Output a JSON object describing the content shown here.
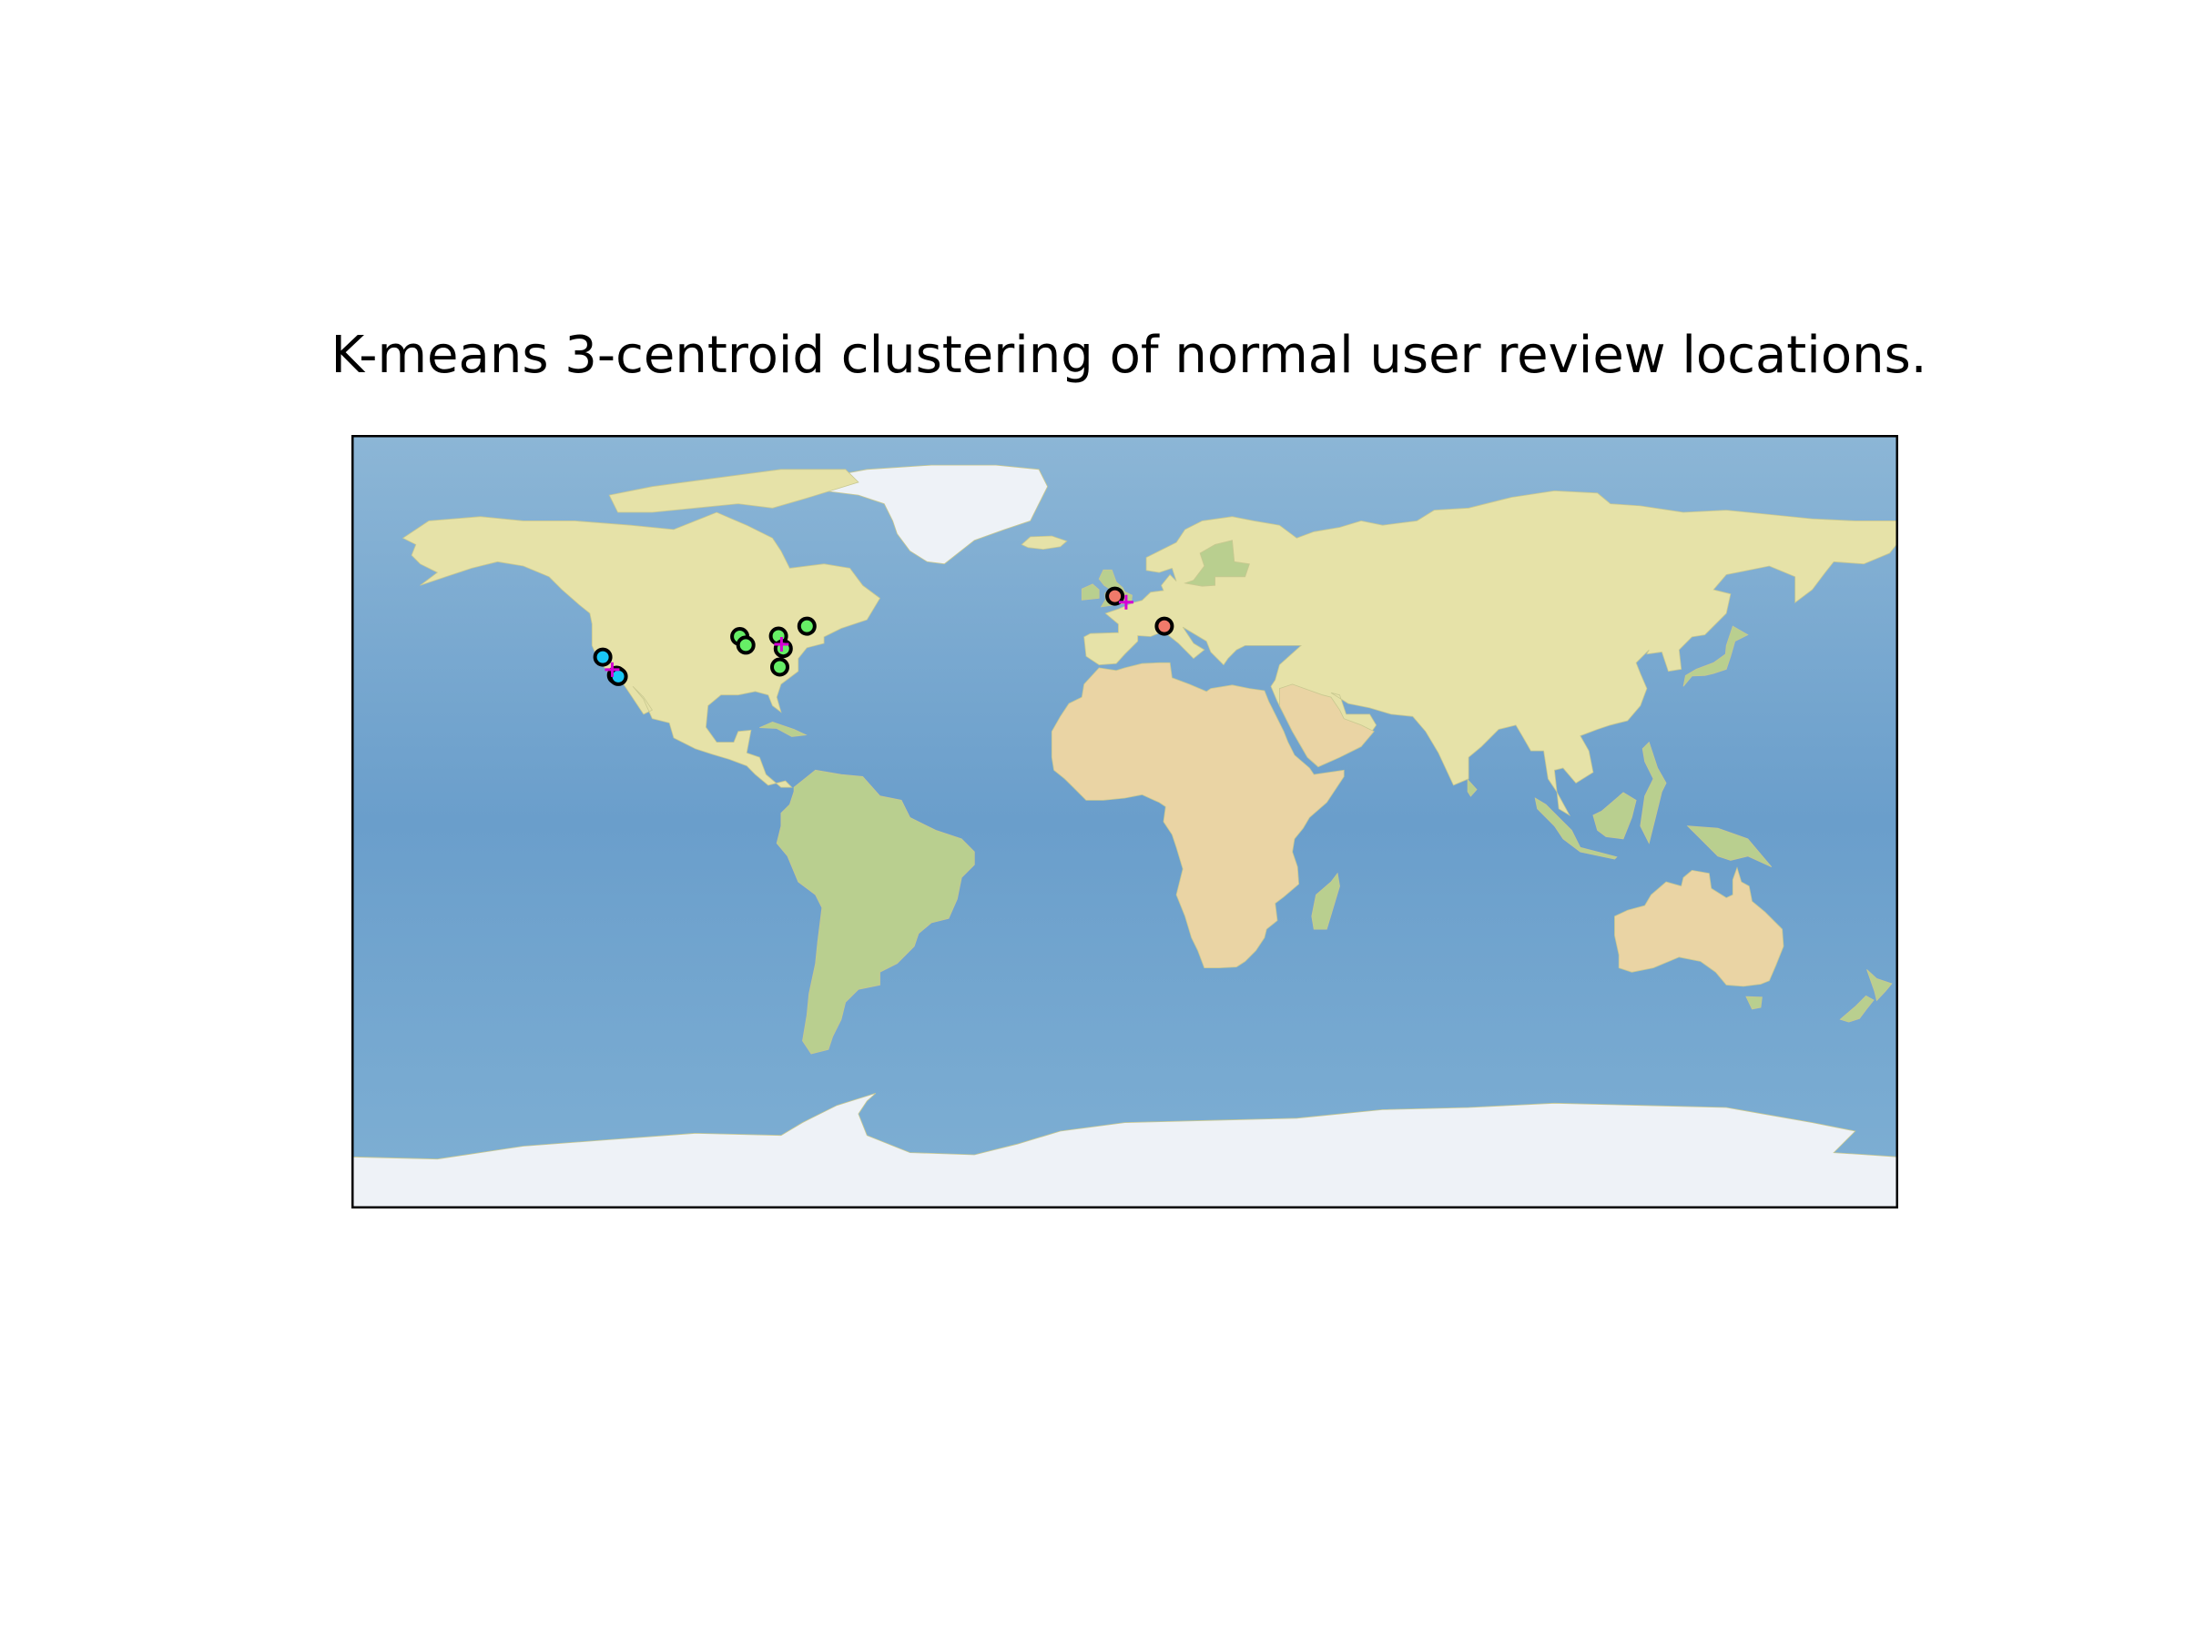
{
  "title": "K-means 3-centroid clustering of normal user review locations.",
  "colors": {
    "ocean": "#6b9fc9",
    "ocean_light": "#8db8d8",
    "land": "#e6e2a8",
    "land_green": "#b9cf8f",
    "desert": "#ead4a4",
    "ice": "#eef2f7",
    "frame": "#000000",
    "cluster_west": "#19c6f5",
    "cluster_east": "#66ee66",
    "cluster_europe": "#f07a6a",
    "centroid": "#d400d4"
  },
  "chart_data": {
    "type": "scatter",
    "title": "K-means 3-centroid clustering of normal user review locations.",
    "projection": "plate-carree",
    "xlim": [
      -180,
      180
    ],
    "ylim": [
      -90,
      90
    ],
    "xlabel": "",
    "ylabel": "",
    "grid": false,
    "series": [
      {
        "color": "#19c6f5",
        "points": [
          {
            "lon": -121.5,
            "lat": 38.3
          },
          {
            "lon": -118.3,
            "lat": 34.1
          },
          {
            "lon": -117.9,
            "lat": 33.8
          }
        ]
      },
      {
        "color": "#66ee66",
        "points": [
          {
            "lon": -89.6,
            "lat": 43.1
          },
          {
            "lon": -88.2,
            "lat": 41.1
          },
          {
            "lon": -80.6,
            "lat": 43.2
          },
          {
            "lon": -79.5,
            "lat": 40.3
          },
          {
            "lon": -74.0,
            "lat": 45.5
          },
          {
            "lon": -80.3,
            "lat": 36.0
          }
        ]
      },
      {
        "color": "#f07a6a",
        "points": [
          {
            "lon": -2.3,
            "lat": 52.5
          },
          {
            "lon": 9.2,
            "lat": 45.5
          }
        ]
      }
    ],
    "centroids": [
      {
        "lon": -119.3,
        "lat": 35.4
      },
      {
        "lon": -79.9,
        "lat": 41.3
      },
      {
        "lon": 0.3,
        "lat": 51.1
      }
    ]
  }
}
